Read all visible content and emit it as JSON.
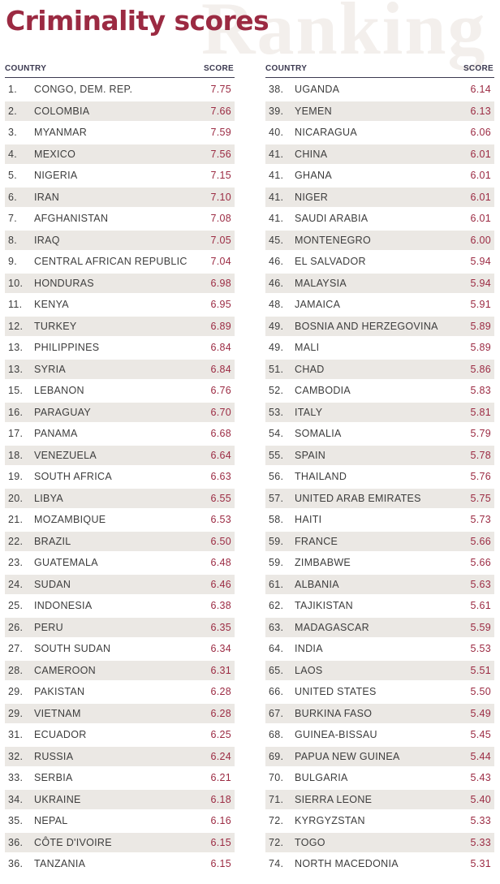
{
  "watermark": "Ranking",
  "title": "Criminality scores",
  "columns": {
    "country": "COUNTRY",
    "score": "SCORE"
  },
  "left_rows": [
    {
      "rank": "1.",
      "country": "CONGO, DEM. REP.",
      "score": "7.75"
    },
    {
      "rank": "2.",
      "country": "COLOMBIA",
      "score": "7.66"
    },
    {
      "rank": "3.",
      "country": "MYANMAR",
      "score": "7.59"
    },
    {
      "rank": "4.",
      "country": "MEXICO",
      "score": "7.56"
    },
    {
      "rank": "5.",
      "country": "NIGERIA",
      "score": "7.15"
    },
    {
      "rank": "6.",
      "country": "IRAN",
      "score": "7.10"
    },
    {
      "rank": "7.",
      "country": "AFGHANISTAN",
      "score": "7.08"
    },
    {
      "rank": "8.",
      "country": "IRAQ",
      "score": "7.05"
    },
    {
      "rank": "9.",
      "country": "CENTRAL AFRICAN REPUBLIC",
      "score": "7.04"
    },
    {
      "rank": "10.",
      "country": "HONDURAS",
      "score": "6.98"
    },
    {
      "rank": "11.",
      "country": "KENYA",
      "score": "6.95"
    },
    {
      "rank": "12.",
      "country": "TURKEY",
      "score": "6.89"
    },
    {
      "rank": "13.",
      "country": "PHILIPPINES",
      "score": "6.84"
    },
    {
      "rank": "13.",
      "country": "SYRIA",
      "score": "6.84"
    },
    {
      "rank": "15.",
      "country": "LEBANON",
      "score": "6.76"
    },
    {
      "rank": "16.",
      "country": "PARAGUAY",
      "score": "6.70"
    },
    {
      "rank": "17.",
      "country": "PANAMA",
      "score": "6.68"
    },
    {
      "rank": "18.",
      "country": "VENEZUELA",
      "score": "6.64"
    },
    {
      "rank": "19.",
      "country": "SOUTH AFRICA",
      "score": "6.63"
    },
    {
      "rank": "20.",
      "country": "LIBYA",
      "score": "6.55"
    },
    {
      "rank": "21.",
      "country": "MOZAMBIQUE",
      "score": "6.53"
    },
    {
      "rank": "22.",
      "country": "BRAZIL",
      "score": "6.50"
    },
    {
      "rank": "23.",
      "country": "GUATEMALA",
      "score": "6.48"
    },
    {
      "rank": "24.",
      "country": "SUDAN",
      "score": "6.46"
    },
    {
      "rank": "25.",
      "country": "INDONESIA",
      "score": "6.38"
    },
    {
      "rank": "26.",
      "country": "PERU",
      "score": "6.35"
    },
    {
      "rank": "27.",
      "country": "SOUTH SUDAN",
      "score": "6.34"
    },
    {
      "rank": "28.",
      "country": "CAMEROON",
      "score": "6.31"
    },
    {
      "rank": "29.",
      "country": "PAKISTAN",
      "score": "6.28"
    },
    {
      "rank": "29.",
      "country": "VIETNAM",
      "score": "6.28"
    },
    {
      "rank": "31.",
      "country": "ECUADOR",
      "score": "6.25"
    },
    {
      "rank": "32.",
      "country": "RUSSIA",
      "score": "6.24"
    },
    {
      "rank": "33.",
      "country": "SERBIA",
      "score": "6.21"
    },
    {
      "rank": "34.",
      "country": "UKRAINE",
      "score": "6.18"
    },
    {
      "rank": "35.",
      "country": "NEPAL",
      "score": "6.16"
    },
    {
      "rank": "36.",
      "country": "CÔTE D'IVOIRE",
      "score": "6.15"
    },
    {
      "rank": "36.",
      "country": "TANZANIA",
      "score": "6.15"
    }
  ],
  "right_rows": [
    {
      "rank": "38.",
      "country": "UGANDA",
      "score": "6.14"
    },
    {
      "rank": "39.",
      "country": "YEMEN",
      "score": "6.13"
    },
    {
      "rank": "40.",
      "country": "NICARAGUA",
      "score": "6.06"
    },
    {
      "rank": "41.",
      "country": "CHINA",
      "score": "6.01"
    },
    {
      "rank": "41.",
      "country": "GHANA",
      "score": "6.01"
    },
    {
      "rank": "41.",
      "country": "NIGER",
      "score": "6.01"
    },
    {
      "rank": "41.",
      "country": "SAUDI ARABIA",
      "score": "6.01"
    },
    {
      "rank": "45.",
      "country": "MONTENEGRO",
      "score": "6.00"
    },
    {
      "rank": "46.",
      "country": "EL SALVADOR",
      "score": "5.94"
    },
    {
      "rank": "46.",
      "country": "MALAYSIA",
      "score": "5.94"
    },
    {
      "rank": "48.",
      "country": "JAMAICA",
      "score": "5.91"
    },
    {
      "rank": "49.",
      "country": "BOSNIA AND HERZEGOVINA",
      "score": "5.89"
    },
    {
      "rank": "49.",
      "country": "MALI",
      "score": "5.89"
    },
    {
      "rank": "51.",
      "country": "CHAD",
      "score": "5.86"
    },
    {
      "rank": "52.",
      "country": "CAMBODIA",
      "score": "5.83"
    },
    {
      "rank": "53.",
      "country": "ITALY",
      "score": "5.81"
    },
    {
      "rank": "54.",
      "country": "SOMALIA",
      "score": "5.79"
    },
    {
      "rank": "55.",
      "country": "SPAIN",
      "score": "5.78"
    },
    {
      "rank": "56.",
      "country": "THAILAND",
      "score": "5.76"
    },
    {
      "rank": "57.",
      "country": "UNITED ARAB EMIRATES",
      "score": "5.75"
    },
    {
      "rank": "58.",
      "country": "HAITI",
      "score": "5.73"
    },
    {
      "rank": "59.",
      "country": "FRANCE",
      "score": "5.66"
    },
    {
      "rank": "59.",
      "country": "ZIMBABWE",
      "score": "5.66"
    },
    {
      "rank": "61.",
      "country": "ALBANIA",
      "score": "5.63"
    },
    {
      "rank": "62.",
      "country": "TAJIKISTAN",
      "score": "5.61"
    },
    {
      "rank": "63.",
      "country": "MADAGASCAR",
      "score": "5.59"
    },
    {
      "rank": "64.",
      "country": "INDIA",
      "score": "5.53"
    },
    {
      "rank": "65.",
      "country": "LAOS",
      "score": "5.51"
    },
    {
      "rank": "66.",
      "country": "UNITED STATES",
      "score": "5.50"
    },
    {
      "rank": "67.",
      "country": "BURKINA FASO",
      "score": "5.49"
    },
    {
      "rank": "68.",
      "country": "GUINEA-BISSAU",
      "score": "5.45"
    },
    {
      "rank": "69.",
      "country": "PAPUA NEW GUINEA",
      "score": "5.44"
    },
    {
      "rank": "70.",
      "country": "BULGARIA",
      "score": "5.43"
    },
    {
      "rank": "71.",
      "country": "SIERRA LEONE",
      "score": "5.40"
    },
    {
      "rank": "72.",
      "country": "KYRGYZSTAN",
      "score": "5.33"
    },
    {
      "rank": "72.",
      "country": "TOGO",
      "score": "5.33"
    },
    {
      "rank": "74.",
      "country": "NORTH MACEDONIA",
      "score": "5.31"
    }
  ]
}
